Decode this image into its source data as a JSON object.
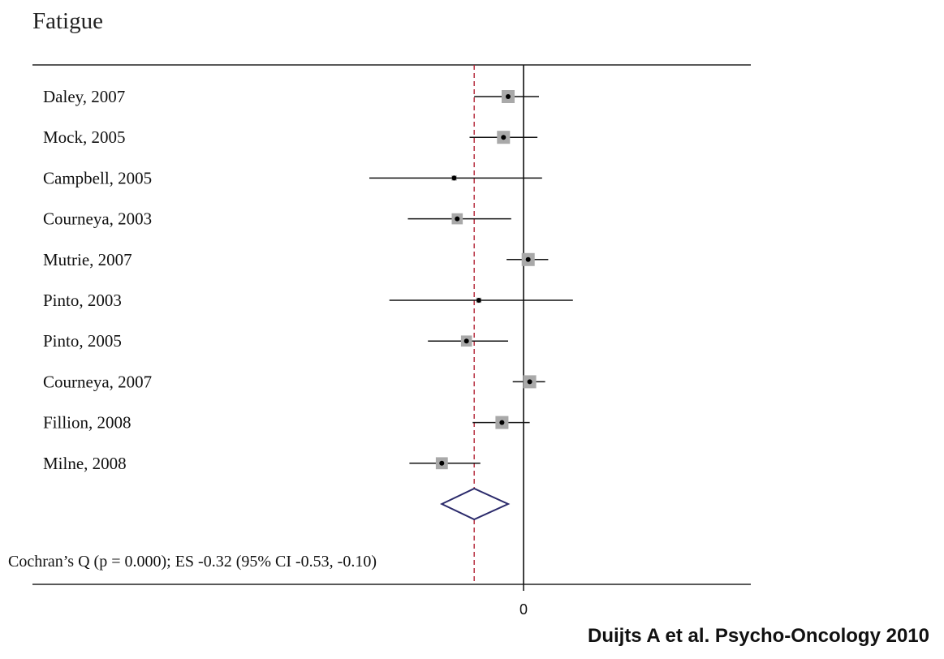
{
  "chart_data": {
    "type": "forest",
    "title": "Fatigue",
    "studies": [
      {
        "label": "Daley, 2007",
        "es": -0.1,
        "lower": -0.32,
        "upper": 0.1,
        "weight": 1.0
      },
      {
        "label": "Mock, 2005",
        "es": -0.13,
        "lower": -0.35,
        "upper": 0.09,
        "weight": 1.0
      },
      {
        "label": "Campbell, 2005",
        "es": -0.45,
        "lower": -1.0,
        "upper": 0.12,
        "weight": 0.2
      },
      {
        "label": "Courneya, 2003",
        "es": -0.43,
        "lower": -0.75,
        "upper": -0.08,
        "weight": 0.8
      },
      {
        "label": "Mutrie, 2007",
        "es": 0.03,
        "lower": -0.11,
        "upper": 0.16,
        "weight": 1.0
      },
      {
        "label": "Pinto, 2003",
        "es": -0.29,
        "lower": -0.87,
        "upper": 0.32,
        "weight": 0.2
      },
      {
        "label": "Pinto, 2005",
        "es": -0.37,
        "lower": -0.62,
        "upper": -0.1,
        "weight": 0.8
      },
      {
        "label": "Courneya, 2007",
        "es": 0.04,
        "lower": -0.07,
        "upper": 0.14,
        "weight": 1.0
      },
      {
        "label": "Fillion, 2008",
        "es": -0.14,
        "lower": -0.33,
        "upper": 0.04,
        "weight": 1.0
      },
      {
        "label": "Milne, 2008",
        "es": -0.53,
        "lower": -0.74,
        "upper": -0.28,
        "weight": 0.9
      }
    ],
    "pooled": {
      "es": -0.32,
      "lower": -0.53,
      "upper": -0.1
    },
    "summary_label": "Cochran’s Q (p = 0.000); ES -0.32 (95% CI -0.53, -0.10)",
    "x_ticks": [
      {
        "value": 0,
        "label": "0"
      }
    ],
    "xlim": [
      -1.8,
      1.5
    ],
    "reference_line": 0,
    "citation": "Duijts A et al. Psycho-Oncology 2010"
  }
}
